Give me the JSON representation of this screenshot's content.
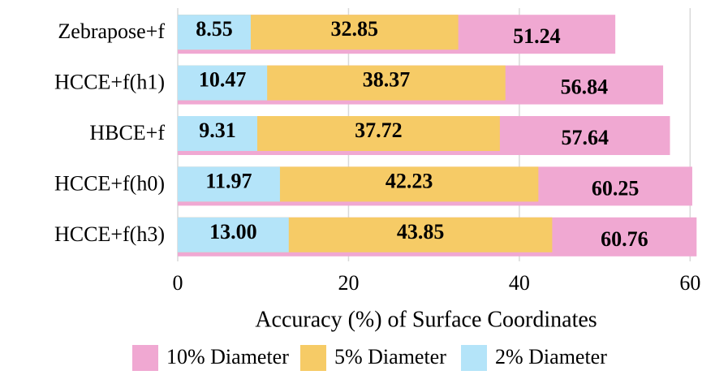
{
  "chart_data": {
    "type": "bar",
    "orientation": "horizontal",
    "xlabel": "Accuracy (%) of Surface Coordinates",
    "categories": [
      "Zebrapose+f",
      "HCCE+f(h1)",
      "HBCE+f",
      "HCCE+f(h0)",
      "HCCE+f(h3)"
    ],
    "series": [
      {
        "name": "10% Diameter",
        "color": "#f0a8d2",
        "values": [
          51.24,
          56.84,
          57.64,
          60.25,
          60.76
        ],
        "value_labels": [
          "51.24",
          "56.84",
          "57.64",
          "60.25",
          "60.76"
        ]
      },
      {
        "name": "5% Diameter",
        "color": "#f6cb66",
        "values": [
          32.85,
          38.37,
          37.72,
          42.23,
          43.85
        ],
        "value_labels": [
          "32.85",
          "38.37",
          "37.72",
          "42.23",
          "43.85"
        ]
      },
      {
        "name": "2% Diameter",
        "color": "#b4e4f9",
        "values": [
          8.55,
          10.47,
          9.31,
          11.97,
          13.0
        ],
        "value_labels": [
          "8.55",
          "10.47",
          "9.31",
          "11.97",
          "13.00"
        ]
      }
    ],
    "xlim": [
      0,
      61.3
    ],
    "xticks": [
      0,
      20,
      40,
      60
    ],
    "grid": true,
    "legend": "bottom"
  }
}
